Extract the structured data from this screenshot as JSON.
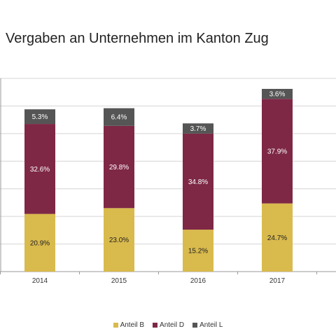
{
  "chart_data": {
    "type": "bar",
    "stacked": true,
    "title": "Vergaben  an Unternehmen im Kanton Zug",
    "categories": [
      "2014",
      "2015",
      "2016",
      "2017"
    ],
    "series": [
      {
        "name": "Anteil B",
        "color": "#D9BA4D",
        "values": [
          20.9,
          23.0,
          15.2,
          24.7
        ],
        "labels": [
          "20.9%",
          "23.0%",
          "15.2%",
          "24.7%"
        ]
      },
      {
        "name": "Anteil D",
        "color": "#7E2846",
        "values": [
          32.6,
          29.8,
          34.8,
          37.9
        ],
        "labels": [
          "32.6%",
          "29.8%",
          "34.8%",
          "37.9%"
        ]
      },
      {
        "name": "Anteil L",
        "color": "#555555",
        "values": [
          5.3,
          6.4,
          3.7,
          3.6
        ],
        "labels": [
          "5.3%",
          "6.4%",
          "3.7%",
          "3.6%"
        ]
      }
    ],
    "ylim": [
      0,
      70
    ],
    "grid": true,
    "legend_position": "bottom"
  }
}
